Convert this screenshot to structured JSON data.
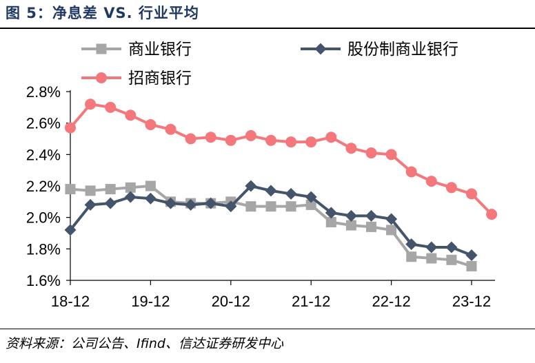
{
  "figure": {
    "title": "图 5：净息差 VS. 行业平均",
    "source": "资料来源：公司公告、Ifind、信达证券研发中心"
  },
  "colors": {
    "title": "#1f3864",
    "series": [
      "#a6a6a6",
      "#44546a",
      "#f4777b"
    ]
  },
  "chart_data": {
    "type": "line",
    "title": "净息差 VS. 行业平均",
    "xlabel": "",
    "ylabel": "",
    "ylim": [
      1.6,
      2.8
    ],
    "yticks": [
      "1.6%",
      "1.8%",
      "2.0%",
      "2.2%",
      "2.4%",
      "2.6%",
      "2.8%"
    ],
    "yticks_values": [
      1.6,
      1.8,
      2.0,
      2.2,
      2.4,
      2.6,
      2.8
    ],
    "xticks": [
      "18-12",
      "19-12",
      "20-12",
      "21-12",
      "22-12",
      "23-12"
    ],
    "xticks_index": [
      0,
      4,
      8,
      12,
      16,
      20
    ],
    "x": [
      "18-12",
      "19-03",
      "19-06",
      "19-09",
      "19-12",
      "20-03",
      "20-06",
      "20-09",
      "20-12",
      "21-03",
      "21-06",
      "21-09",
      "21-12",
      "22-03",
      "22-06",
      "22-09",
      "22-12",
      "23-03",
      "23-06",
      "23-09",
      "23-12",
      "24-03"
    ],
    "legend_position": "top",
    "series": [
      {
        "name": "商业银行",
        "marker": "square",
        "values": [
          2.18,
          2.17,
          2.18,
          2.19,
          2.2,
          2.1,
          2.09,
          2.09,
          2.1,
          2.07,
          2.07,
          2.07,
          2.08,
          1.97,
          1.95,
          1.94,
          1.92,
          1.75,
          1.74,
          1.73,
          1.69,
          null
        ]
      },
      {
        "name": "股份制商业银行",
        "marker": "diamond",
        "values": [
          1.92,
          2.08,
          2.09,
          2.13,
          2.12,
          2.09,
          2.08,
          2.09,
          2.07,
          2.2,
          2.17,
          2.15,
          2.13,
          2.03,
          2.01,
          2.01,
          1.99,
          1.83,
          1.81,
          1.81,
          1.76,
          null
        ]
      },
      {
        "name": "招商银行",
        "marker": "circle",
        "values": [
          2.57,
          2.72,
          2.7,
          2.65,
          2.59,
          2.56,
          2.5,
          2.51,
          2.49,
          2.52,
          2.49,
          2.48,
          2.48,
          2.51,
          2.44,
          2.41,
          2.4,
          2.29,
          2.23,
          2.19,
          2.15,
          2.02
        ]
      }
    ]
  }
}
